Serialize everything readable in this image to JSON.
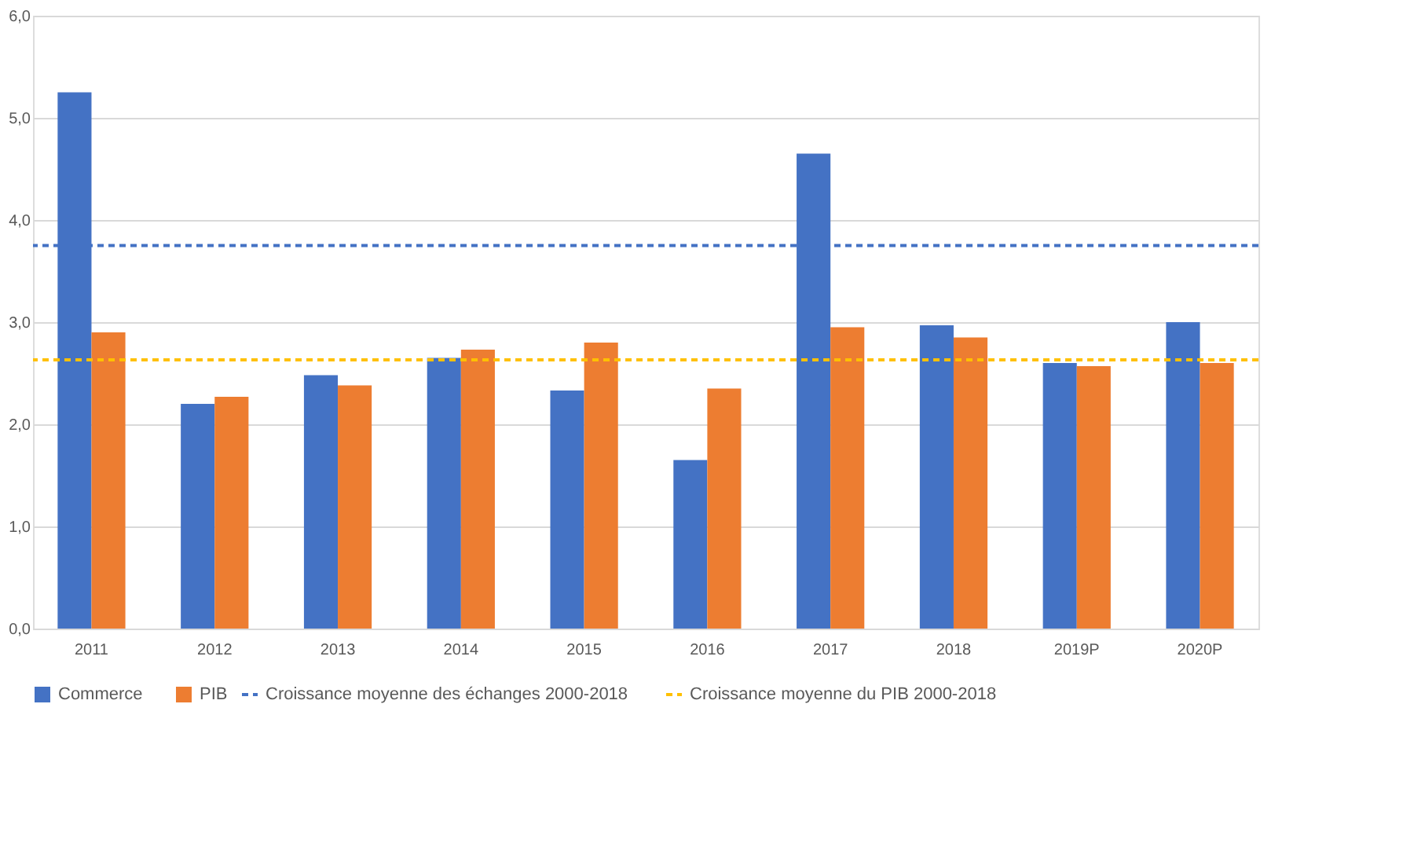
{
  "chart_data": {
    "type": "bar",
    "categories": [
      "2011",
      "2012",
      "2013",
      "2014",
      "2015",
      "2016",
      "2017",
      "2018",
      "2019P",
      "2020P"
    ],
    "series": [
      {
        "name": "Commerce",
        "color": "#4472c4",
        "values": [
          5.25,
          2.2,
          2.48,
          2.65,
          2.33,
          1.65,
          4.65,
          2.97,
          2.6,
          3.0
        ]
      },
      {
        "name": "PIB",
        "color": "#ed7d31",
        "values": [
          2.9,
          2.27,
          2.38,
          2.73,
          2.8,
          2.35,
          2.95,
          2.85,
          2.57,
          2.6
        ]
      }
    ],
    "ylim": [
      0,
      6
    ],
    "yticks": [
      {
        "value": 0,
        "label": "0,0"
      },
      {
        "value": 1,
        "label": "1,0"
      },
      {
        "value": 2,
        "label": "2,0"
      },
      {
        "value": 3,
        "label": "3,0"
      },
      {
        "value": 4,
        "label": "4,0"
      },
      {
        "value": 5,
        "label": "5,0"
      },
      {
        "value": 6,
        "label": "6,0"
      }
    ],
    "ref_lines": [
      {
        "axis": "y",
        "value": 3.75,
        "label": "Croissance moyenne des échanges 2000-2018",
        "color": "#4472c4",
        "line_style": "dashed"
      },
      {
        "axis": "y",
        "value": 2.63,
        "label": "Croissance moyenne du PIB 2000-2018",
        "color": "#ffc000",
        "line_style": "dashed"
      }
    ],
    "grid": "y",
    "legend": "bottom"
  }
}
